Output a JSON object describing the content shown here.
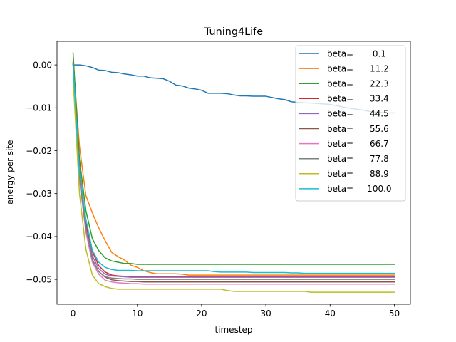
{
  "chart_data": {
    "type": "line",
    "title": "Tuning4Life",
    "xlabel": "timestep",
    "ylabel": "energy per site",
    "xlim": [
      -2.5,
      52.5
    ],
    "ylim": [
      -0.0558,
      0.0055
    ],
    "xticks": [
      0,
      10,
      20,
      30,
      40,
      50
    ],
    "xtick_labels": [
      "0",
      "10",
      "20",
      "30",
      "40",
      "50"
    ],
    "yticks": [
      0.0,
      -0.01,
      -0.02,
      -0.03,
      -0.04,
      -0.05
    ],
    "ytick_labels": [
      "0.00",
      "−0.01",
      "−0.02",
      "−0.03",
      "−0.04",
      "−0.05"
    ],
    "grid": false,
    "legend_position": "top-right",
    "x": [
      0,
      1,
      2,
      3,
      4,
      5,
      6,
      7,
      8,
      9,
      10,
      11,
      12,
      13,
      14,
      15,
      16,
      17,
      18,
      19,
      20,
      21,
      22,
      23,
      24,
      25,
      26,
      27,
      28,
      29,
      30,
      31,
      32,
      33,
      34,
      35,
      36,
      37,
      38,
      39,
      40,
      41,
      42,
      43,
      44,
      45,
      46,
      47,
      48,
      49,
      50
    ],
    "series": [
      {
        "name": "beta=       0.1",
        "color": "#1f77b4",
        "values": [
          0.0,
          0.0,
          -0.0002,
          -0.0006,
          -0.0012,
          -0.0013,
          -0.0017,
          -0.0018,
          -0.0021,
          -0.0023,
          -0.0026,
          -0.0026,
          -0.003,
          -0.0031,
          -0.0032,
          -0.0038,
          -0.0047,
          -0.0049,
          -0.0054,
          -0.0056,
          -0.0059,
          -0.0066,
          -0.0066,
          -0.0066,
          -0.0067,
          -0.007,
          -0.0072,
          -0.0072,
          -0.0073,
          -0.0073,
          -0.0073,
          -0.0076,
          -0.0079,
          -0.0081,
          -0.0086,
          -0.0087,
          -0.0088,
          -0.0089,
          -0.009,
          -0.0091,
          -0.0092,
          -0.0095,
          -0.0098,
          -0.0101,
          -0.0103,
          -0.0105,
          -0.0108,
          -0.011,
          -0.0111,
          -0.0112,
          -0.0112
        ]
      },
      {
        "name": "beta=      11.2",
        "color": "#ff7f0e",
        "values": [
          0.001,
          -0.019,
          -0.0305,
          -0.0345,
          -0.038,
          -0.041,
          -0.0437,
          -0.0447,
          -0.0455,
          -0.0467,
          -0.0472,
          -0.048,
          -0.0484,
          -0.0487,
          -0.0487,
          -0.0487,
          -0.0487,
          -0.0488,
          -0.049,
          -0.049,
          -0.049,
          -0.049,
          -0.049,
          -0.049,
          -0.049,
          -0.049,
          -0.049,
          -0.049,
          -0.049,
          -0.049,
          -0.049,
          -0.049,
          -0.049,
          -0.049,
          -0.049,
          -0.049,
          -0.049,
          -0.049,
          -0.049,
          -0.049,
          -0.049,
          -0.049,
          -0.049,
          -0.049,
          -0.049,
          -0.049,
          -0.049,
          -0.049,
          -0.049,
          -0.049,
          -0.049
        ]
      },
      {
        "name": "beta=      22.3",
        "color": "#2ca02c",
        "values": [
          0.0028,
          -0.022,
          -0.034,
          -0.0405,
          -0.0433,
          -0.045,
          -0.0457,
          -0.046,
          -0.0463,
          -0.0463,
          -0.0465,
          -0.0465,
          -0.0465,
          -0.0465,
          -0.0465,
          -0.0465,
          -0.0465,
          -0.0465,
          -0.0465,
          -0.0465,
          -0.0465,
          -0.0465,
          -0.0465,
          -0.0465,
          -0.0465,
          -0.0465,
          -0.0465,
          -0.0465,
          -0.0465,
          -0.0465,
          -0.0465,
          -0.0465,
          -0.0465,
          -0.0465,
          -0.0465,
          -0.0465,
          -0.0465,
          -0.0465,
          -0.0465,
          -0.0465,
          -0.0465,
          -0.0465,
          -0.0465,
          -0.0465,
          -0.0465,
          -0.0465,
          -0.0465,
          -0.0465,
          -0.0465,
          -0.0465,
          -0.0465
        ]
      },
      {
        "name": "beta=      33.4",
        "color": "#d62728",
        "values": [
          0.0005,
          -0.024,
          -0.037,
          -0.0435,
          -0.0468,
          -0.0483,
          -0.049,
          -0.0492,
          -0.0493,
          -0.0494,
          -0.0494,
          -0.0494,
          -0.0494,
          -0.0494,
          -0.0494,
          -0.0494,
          -0.0494,
          -0.0494,
          -0.0494,
          -0.0494,
          -0.0494,
          -0.0494,
          -0.0494,
          -0.0494,
          -0.0494,
          -0.0494,
          -0.0494,
          -0.0494,
          -0.0494,
          -0.0494,
          -0.0494,
          -0.0494,
          -0.0494,
          -0.0494,
          -0.0494,
          -0.0494,
          -0.0494,
          -0.0494,
          -0.0494,
          -0.0494,
          -0.0494,
          -0.0494,
          -0.0494,
          -0.0494,
          -0.0494,
          -0.0494,
          -0.0494,
          -0.0494,
          -0.0494,
          -0.0494,
          -0.0494
        ]
      },
      {
        "name": "beta=      44.5",
        "color": "#9467bd",
        "values": [
          0.0003,
          -0.025,
          -0.038,
          -0.0445,
          -0.0475,
          -0.0488,
          -0.0492,
          -0.0493,
          -0.0494,
          -0.0495,
          -0.0495,
          -0.0495,
          -0.0495,
          -0.0495,
          -0.0495,
          -0.0495,
          -0.0495,
          -0.0495,
          -0.0495,
          -0.0495,
          -0.0495,
          -0.0495,
          -0.0495,
          -0.0495,
          -0.0495,
          -0.0495,
          -0.0495,
          -0.0495,
          -0.0495,
          -0.0495,
          -0.0495,
          -0.0495,
          -0.0495,
          -0.0495,
          -0.0495,
          -0.0495,
          -0.0495,
          -0.0495,
          -0.0495,
          -0.0495,
          -0.0495,
          -0.0495,
          -0.0495,
          -0.0495,
          -0.0495,
          -0.0495,
          -0.0495,
          -0.0495,
          -0.0495,
          -0.0495,
          -0.0495
        ]
      },
      {
        "name": "beta=      55.6",
        "color": "#8c564b",
        "values": [
          0.0004,
          -0.026,
          -0.0385,
          -0.0455,
          -0.0482,
          -0.0495,
          -0.0501,
          -0.0503,
          -0.0504,
          -0.0505,
          -0.0505,
          -0.0506,
          -0.0506,
          -0.0506,
          -0.0506,
          -0.0506,
          -0.0506,
          -0.0506,
          -0.0506,
          -0.0506,
          -0.0506,
          -0.0506,
          -0.0506,
          -0.0506,
          -0.0506,
          -0.0506,
          -0.0506,
          -0.0506,
          -0.0506,
          -0.0506,
          -0.0506,
          -0.0506,
          -0.0506,
          -0.0506,
          -0.0506,
          -0.0506,
          -0.0506,
          -0.0506,
          -0.0506,
          -0.0506,
          -0.0506,
          -0.0506,
          -0.0506,
          -0.0506,
          -0.0506,
          -0.0506,
          -0.0506,
          -0.0506,
          -0.0506,
          -0.0506,
          -0.0506
        ]
      },
      {
        "name": "beta=      66.7",
        "color": "#e377c2",
        "values": [
          0.0002,
          -0.027,
          -0.039,
          -0.046,
          -0.0488,
          -0.0502,
          -0.0506,
          -0.0508,
          -0.0509,
          -0.051,
          -0.051,
          -0.0511,
          -0.0511,
          -0.0511,
          -0.0511,
          -0.0511,
          -0.0511,
          -0.0511,
          -0.0511,
          -0.0511,
          -0.0511,
          -0.0511,
          -0.0511,
          -0.0511,
          -0.0511,
          -0.0511,
          -0.0511,
          -0.0511,
          -0.0511,
          -0.0511,
          -0.0511,
          -0.0511,
          -0.0511,
          -0.0511,
          -0.0511,
          -0.0511,
          -0.0511,
          -0.0511,
          -0.0511,
          -0.0511,
          -0.0511,
          -0.0511,
          -0.0511,
          -0.0511,
          -0.0511,
          -0.0511,
          -0.0511,
          -0.0511,
          -0.0511,
          -0.0511,
          -0.0511
        ]
      },
      {
        "name": "beta=      77.8",
        "color": "#7f7f7f",
        "values": [
          0.0002,
          -0.026,
          -0.038,
          -0.0453,
          -0.0482,
          -0.0494,
          -0.0497,
          -0.0498,
          -0.0499,
          -0.0499,
          -0.05,
          -0.05,
          -0.05,
          -0.05,
          -0.05,
          -0.05,
          -0.05,
          -0.05,
          -0.05,
          -0.05,
          -0.05,
          -0.05,
          -0.05,
          -0.05,
          -0.05,
          -0.05,
          -0.05,
          -0.05,
          -0.05,
          -0.05,
          -0.05,
          -0.05,
          -0.05,
          -0.05,
          -0.05,
          -0.05,
          -0.05,
          -0.05,
          -0.05,
          -0.05,
          -0.05,
          -0.05,
          -0.05,
          -0.05,
          -0.05,
          -0.05,
          -0.05,
          -0.05,
          -0.05,
          -0.05,
          -0.05
        ]
      },
      {
        "name": "beta=      88.9",
        "color": "#bcbd22",
        "values": [
          -0.003,
          -0.03,
          -0.043,
          -0.049,
          -0.051,
          -0.0517,
          -0.0521,
          -0.0523,
          -0.0523,
          -0.0523,
          -0.0523,
          -0.0523,
          -0.0523,
          -0.0523,
          -0.0523,
          -0.0523,
          -0.0523,
          -0.0523,
          -0.0523,
          -0.0523,
          -0.0523,
          -0.0523,
          -0.0523,
          -0.0523,
          -0.0526,
          -0.0528,
          -0.0528,
          -0.0528,
          -0.0528,
          -0.0528,
          -0.0528,
          -0.0528,
          -0.0528,
          -0.0528,
          -0.0528,
          -0.0528,
          -0.0528,
          -0.053,
          -0.053,
          -0.053,
          -0.053,
          -0.053,
          -0.053,
          -0.053,
          -0.053,
          -0.053,
          -0.053,
          -0.053,
          -0.053,
          -0.053,
          -0.053
        ]
      },
      {
        "name": "beta=     100.0",
        "color": "#17becf",
        "values": [
          0.0,
          -0.025,
          -0.036,
          -0.0432,
          -0.046,
          -0.0472,
          -0.0477,
          -0.0479,
          -0.0479,
          -0.0479,
          -0.048,
          -0.048,
          -0.048,
          -0.048,
          -0.048,
          -0.048,
          -0.048,
          -0.048,
          -0.048,
          -0.048,
          -0.048,
          -0.048,
          -0.0482,
          -0.0483,
          -0.0483,
          -0.0483,
          -0.0483,
          -0.0483,
          -0.0484,
          -0.0484,
          -0.0484,
          -0.0484,
          -0.0484,
          -0.0484,
          -0.0485,
          -0.0485,
          -0.0486,
          -0.0486,
          -0.0486,
          -0.0486,
          -0.0486,
          -0.0486,
          -0.0486,
          -0.0486,
          -0.0486,
          -0.0486,
          -0.0486,
          -0.0486,
          -0.0486,
          -0.0486,
          -0.0486
        ]
      }
    ]
  }
}
